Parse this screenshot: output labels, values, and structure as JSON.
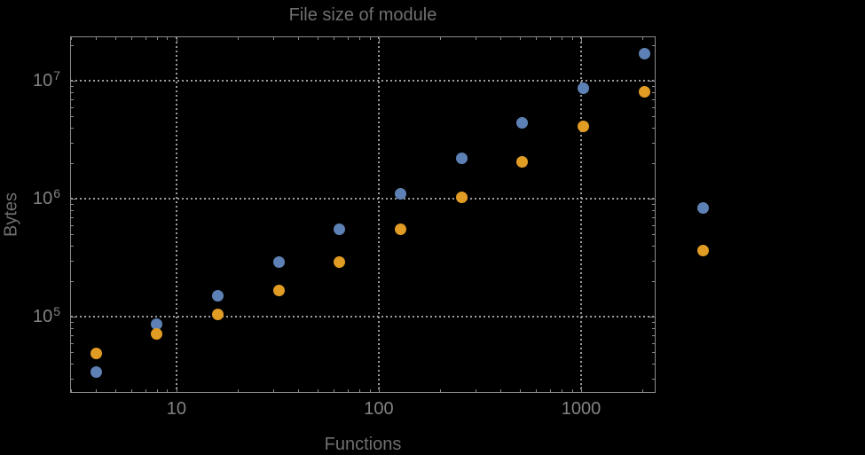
{
  "chart_data": {
    "type": "scatter",
    "title": "File size of module",
    "xlabel": "Functions",
    "ylabel": "Bytes",
    "x_scale": "log",
    "y_scale": "log",
    "xlim": [
      2.98,
      2335
    ],
    "ylim": [
      22600,
      23800000
    ],
    "grid": "dotted-at-major-ticks",
    "legend": "none",
    "background": "#000000",
    "frame_color": "#8a8a8a",
    "grid_color": "#9c9c9c",
    "tick_label_color": "#828282",
    "label_color": "#6f6f6f",
    "x": [
      4,
      8,
      16,
      32,
      64,
      128,
      256,
      512,
      1024,
      2048,
      4000
    ],
    "series": [
      {
        "name": "series-1-blue",
        "color": "#5e81b5",
        "values": [
          34000,
          86000,
          150000,
          290000,
          550000,
          1100000,
          2200000,
          4400000,
          8600000,
          17000000,
          840000
        ]
      },
      {
        "name": "series-2-orange",
        "color": "#e19c24",
        "values": [
          49000,
          71000,
          105000,
          168000,
          290000,
          550000,
          1020000,
          2050000,
          4100000,
          8000000,
          365000
        ]
      }
    ],
    "x_major_ticks": [
      {
        "value": 10,
        "label": "10"
      },
      {
        "value": 100,
        "label": "100"
      },
      {
        "value": 1000,
        "label": "1000"
      }
    ],
    "y_major_ticks": [
      {
        "value": 100000,
        "base": "10",
        "exp": "5"
      },
      {
        "value": 1000000,
        "base": "10",
        "exp": "6"
      },
      {
        "value": 10000000,
        "base": "10",
        "exp": "7"
      }
    ]
  }
}
